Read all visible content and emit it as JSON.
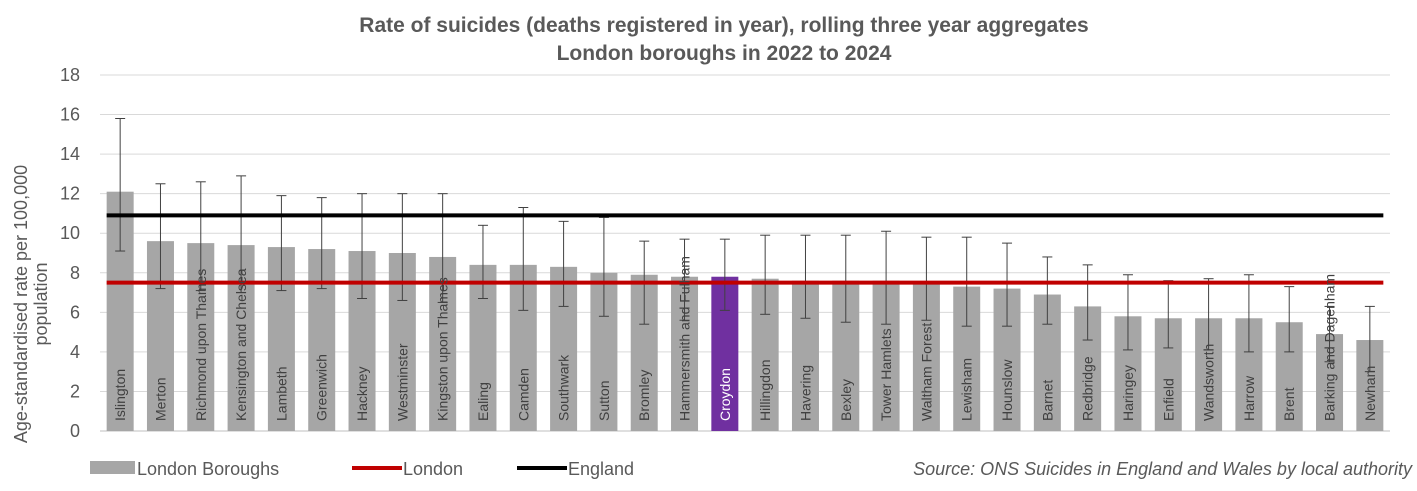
{
  "chart_data": {
    "type": "bar",
    "title": "Rate of suicides (deaths registered in year), rolling three year aggregates",
    "subtitle": "London boroughs in 2022 to 2024",
    "ylabel": "Age-standardised rate per 100,000 population",
    "ylabel_lines": [
      "Age-standardised rate per 100,000",
      "population"
    ],
    "ylim": [
      0,
      18
    ],
    "yticks": [
      0,
      2,
      4,
      6,
      8,
      10,
      12,
      14,
      16,
      18
    ],
    "grid": true,
    "categories": [
      "Islington",
      "Merton",
      "Richmond upon Thames",
      "Kensington and Chelsea",
      "Lambeth",
      "Greenwich",
      "Hackney",
      "Westminster",
      "Kingston upon Thames",
      "Ealing",
      "Camden",
      "Southwark",
      "Sutton",
      "Bromley",
      "Hammersmith and Fulham",
      "Croydon",
      "Hillingdon",
      "Havering",
      "Bexley",
      "Tower Hamlets",
      "Waltham Forest",
      "Lewisham",
      "Hounslow",
      "Barnet",
      "Redbridge",
      "Haringey",
      "Enfield",
      "Wandsworth",
      "Harrow",
      "Brent",
      "Barking and Dagenham",
      "Newham"
    ],
    "values": [
      12.1,
      9.6,
      9.5,
      9.4,
      9.3,
      9.2,
      9.1,
      9.0,
      8.8,
      8.4,
      8.4,
      8.3,
      8.0,
      7.9,
      7.8,
      7.8,
      7.7,
      7.6,
      7.6,
      7.6,
      7.5,
      7.3,
      7.2,
      6.9,
      6.3,
      5.8,
      5.7,
      5.7,
      5.7,
      5.5,
      4.9,
      4.6
    ],
    "error_low": [
      9.1,
      7.2,
      7.1,
      7.0,
      7.1,
      7.2,
      6.7,
      6.6,
      6.5,
      6.7,
      6.1,
      6.3,
      5.8,
      5.4,
      5.6,
      6.1,
      5.9,
      5.7,
      5.5,
      5.4,
      5.6,
      5.3,
      5.3,
      5.4,
      4.6,
      4.1,
      4.2,
      4.1,
      4.0,
      4.0,
      3.5,
      3.0
    ],
    "error_high": [
      15.8,
      12.5,
      12.6,
      12.9,
      11.9,
      11.8,
      12.0,
      12.0,
      12.0,
      10.4,
      11.3,
      10.6,
      10.8,
      9.6,
      9.7,
      9.7,
      9.9,
      9.9,
      9.9,
      10.1,
      9.8,
      9.8,
      9.5,
      8.8,
      8.4,
      7.9,
      7.6,
      7.7,
      7.9,
      7.3,
      6.3,
      6.3
    ],
    "highlight": "Croydon",
    "reference_lines": [
      {
        "name": "London",
        "value": 7.5,
        "color": "#c00000"
      },
      {
        "name": "England",
        "value": 10.9,
        "color": "#000000"
      }
    ],
    "legend": [
      "London Boroughs",
      "London",
      "England"
    ],
    "legend_position": "bottom",
    "bar_color": "#a6a6a6",
    "highlight_color": "#7030a0",
    "source": "Source: ONS Suicides in England and Wales by local authority"
  }
}
